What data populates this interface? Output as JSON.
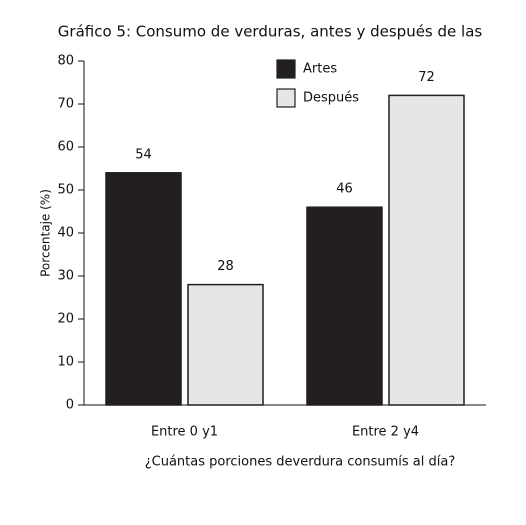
{
  "chart_data": {
    "type": "bar",
    "title": "Gráfico 5: Consumo de verduras, antes y después de las",
    "xlabel": "¿Cuántas porciones deverdura consumís al día?",
    "ylabel": "Porcentaje (%)",
    "categories": [
      "Entre 0 y1",
      "Entre 2 y4"
    ],
    "series": [
      {
        "name": "Artes",
        "color": "#231f20",
        "values": [
          54,
          46
        ]
      },
      {
        "name": "Después",
        "color": "#e6e6e6",
        "values": [
          28,
          72
        ]
      }
    ],
    "ylim": [
      0,
      80
    ],
    "yticks": [
      0,
      10,
      20,
      30,
      40,
      50,
      60,
      70,
      80
    ],
    "grid": false,
    "legend": "top-right"
  }
}
